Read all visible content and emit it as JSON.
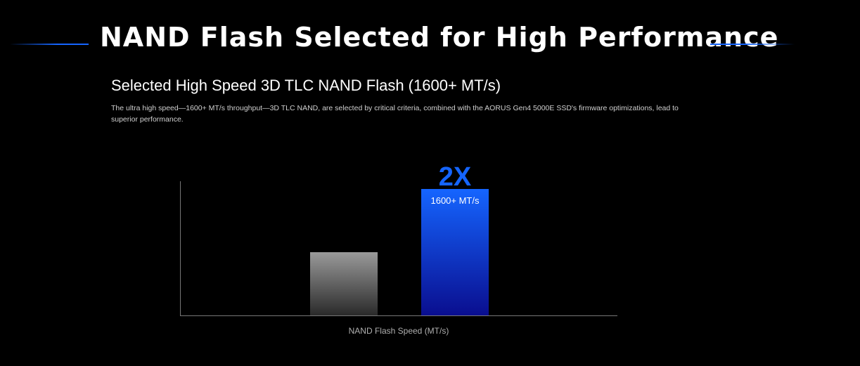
{
  "header": {
    "title": "NAND Flash Selected for High Performance",
    "accent_color": "#1565ff"
  },
  "section": {
    "subtitle": "Selected High Speed 3D TLC NAND Flash (1600+ MT/s)",
    "description": "The ultra high speed—1600+ MT/s throughput—3D TLC NAND, are selected by critical criteria, combined with the AORUS Gen4 5000E SSD's firmware optimizations, lead to superior performance."
  },
  "chart_data": {
    "type": "bar",
    "title": "",
    "xlabel": "NAND Flash Speed (MT/s)",
    "ylabel": "",
    "categories": [
      "",
      ""
    ],
    "values": [
      800,
      1600
    ],
    "ylim": [
      0,
      1700
    ],
    "bar_labels": [
      "",
      "1600+ MT/s"
    ],
    "bar_highlights": [
      "",
      "2X"
    ],
    "colors": [
      "#9a9a9a",
      "#1565ff"
    ],
    "grid": false,
    "legend": "none"
  }
}
